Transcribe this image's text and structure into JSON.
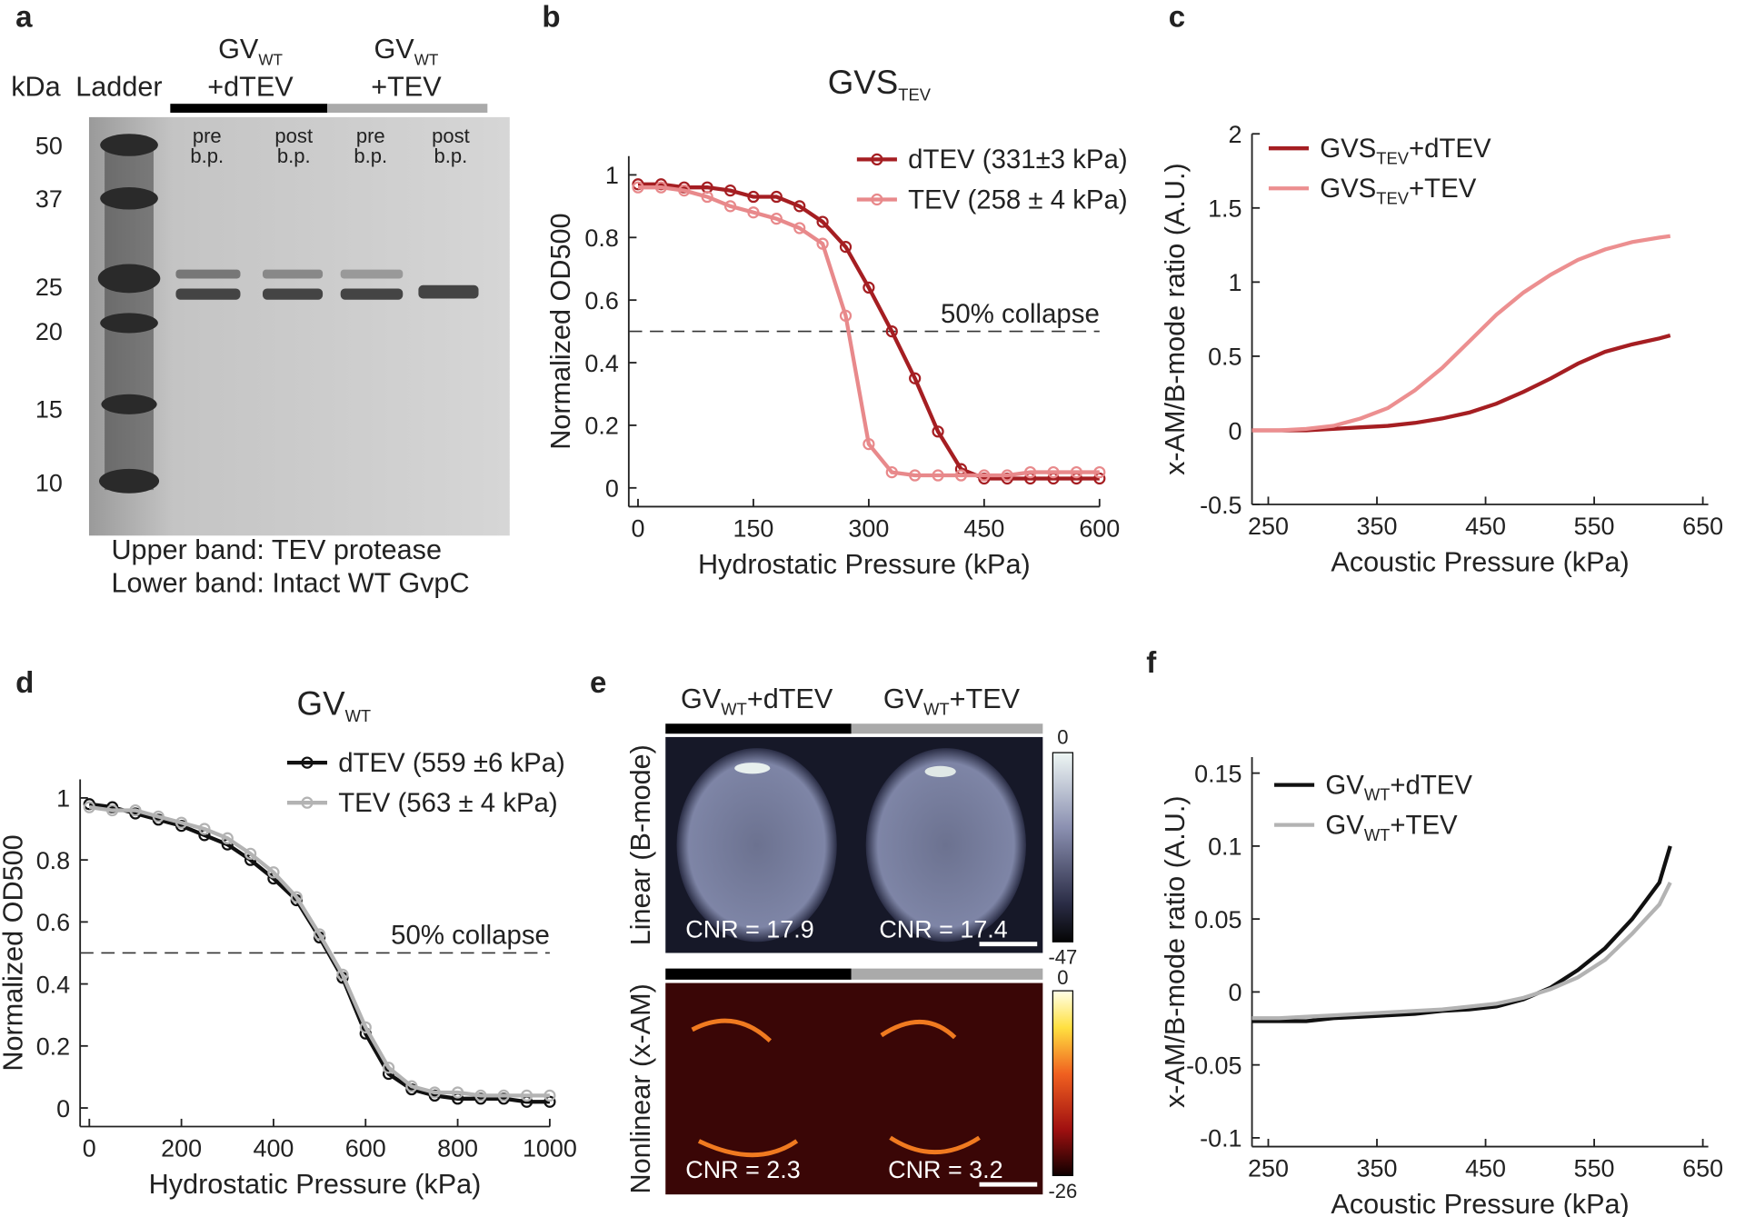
{
  "chart_data": [
    {
      "type": "line",
      "panel": "b",
      "title": "GVS",
      "title_sub": "TEV",
      "xlabel": "Hydrostatic Pressure (kPa)",
      "ylabel": "Normalized OD500",
      "xlim": [
        -12,
        600
      ],
      "xticks": [
        0,
        150,
        300,
        450,
        600
      ],
      "ylim": [
        -0.06,
        1.06
      ],
      "yticks": [
        0,
        0.2,
        0.4,
        0.6,
        0.8,
        1
      ],
      "grid": false,
      "legend": "upper right",
      "markers": true,
      "hline": 0.5,
      "annotation": "50% collapse",
      "x": [
        0,
        30,
        60,
        90,
        120,
        150,
        180,
        210,
        240,
        270,
        300,
        330,
        360,
        390,
        420,
        450,
        480,
        510,
        540,
        570,
        600
      ],
      "series": [
        {
          "name": "dTEV (331±3 kPa)",
          "color": "#a51e22",
          "values": [
            0.97,
            0.97,
            0.96,
            0.96,
            0.95,
            0.93,
            0.93,
            0.9,
            0.85,
            0.77,
            0.64,
            0.5,
            0.35,
            0.18,
            0.06,
            0.03,
            0.03,
            0.03,
            0.03,
            0.03,
            0.03
          ]
        },
        {
          "name": "TEV (258 ± 4 kPa)",
          "color": "#e8898b",
          "values": [
            0.96,
            0.96,
            0.95,
            0.93,
            0.9,
            0.88,
            0.86,
            0.83,
            0.78,
            0.55,
            0.14,
            0.05,
            0.04,
            0.04,
            0.04,
            0.04,
            0.04,
            0.05,
            0.05,
            0.05,
            0.05
          ]
        }
      ]
    },
    {
      "type": "line",
      "panel": "c",
      "xlabel": "Acoustic Pressure (kPa)",
      "ylabel": "x-AM/B-mode ratio (A.U.)",
      "xlim": [
        235,
        655
      ],
      "xticks": [
        250,
        350,
        450,
        550,
        650
      ],
      "ylim": [
        -0.5,
        2
      ],
      "yticks": [
        -0.5,
        0,
        0.5,
        1,
        1.5,
        2
      ],
      "grid": false,
      "legend": "upper left",
      "markers": false,
      "x": [
        235,
        260,
        285,
        310,
        335,
        360,
        385,
        410,
        435,
        460,
        485,
        510,
        535,
        560,
        585,
        610,
        620
      ],
      "series": [
        {
          "name": "GVS",
          "name_sub": "TEV",
          "name_suffix": "+dTEV",
          "color": "#a51e22",
          "values": [
            0,
            0,
            0,
            0.01,
            0.02,
            0.03,
            0.05,
            0.08,
            0.12,
            0.18,
            0.26,
            0.35,
            0.45,
            0.53,
            0.58,
            0.62,
            0.64
          ]
        },
        {
          "name": "GVS",
          "name_sub": "TEV",
          "name_suffix": "+TEV",
          "color": "#ec8f90",
          "values": [
            0,
            0,
            0.01,
            0.03,
            0.08,
            0.15,
            0.27,
            0.42,
            0.6,
            0.78,
            0.93,
            1.05,
            1.15,
            1.22,
            1.27,
            1.3,
            1.31
          ]
        }
      ]
    },
    {
      "type": "line",
      "panel": "d",
      "title": "GV",
      "title_sub": "WT",
      "xlabel": "Hydrostatic Pressure (kPa)",
      "ylabel": "Normalized OD500",
      "xlim": [
        -20,
        1000
      ],
      "xticks": [
        0,
        200,
        400,
        600,
        800,
        1000
      ],
      "ylim": [
        -0.06,
        1.06
      ],
      "yticks": [
        0,
        0.2,
        0.4,
        0.6,
        0.8,
        1
      ],
      "grid": false,
      "legend": "upper right",
      "markers": true,
      "hline": 0.5,
      "annotation": "50% collapse",
      "x": [
        0,
        50,
        100,
        150,
        200,
        250,
        300,
        350,
        400,
        450,
        500,
        550,
        600,
        650,
        700,
        750,
        800,
        850,
        900,
        950,
        1000
      ],
      "series": [
        {
          "name": "dTEV (559 ±6 kPa)",
          "color": "#111111",
          "values": [
            0.98,
            0.97,
            0.95,
            0.93,
            0.91,
            0.88,
            0.85,
            0.8,
            0.74,
            0.67,
            0.55,
            0.42,
            0.24,
            0.11,
            0.06,
            0.04,
            0.03,
            0.03,
            0.03,
            0.02,
            0.02
          ]
        },
        {
          "name": "TEV (563 ± 4 kPa)",
          "color": "#b3b3b3",
          "values": [
            0.97,
            0.96,
            0.96,
            0.94,
            0.92,
            0.9,
            0.87,
            0.82,
            0.76,
            0.68,
            0.56,
            0.43,
            0.26,
            0.13,
            0.07,
            0.05,
            0.05,
            0.04,
            0.04,
            0.04,
            0.04
          ]
        }
      ]
    },
    {
      "type": "line",
      "panel": "f",
      "xlabel": "Acoustic Pressure (kPa)",
      "ylabel": "x-AM/B-mode ratio (A.U.)",
      "xlim": [
        235,
        655
      ],
      "xticks": [
        250,
        350,
        450,
        550,
        650
      ],
      "ylim": [
        -0.106,
        0.161
      ],
      "yticks": [
        -0.1,
        -0.05,
        0,
        0.05,
        0.1,
        0.15
      ],
      "grid": false,
      "legend": "upper left",
      "markers": false,
      "x": [
        235,
        260,
        285,
        310,
        335,
        360,
        385,
        410,
        435,
        460,
        485,
        510,
        535,
        560,
        585,
        610,
        620
      ],
      "series": [
        {
          "name": "GV",
          "name_sub": "WT",
          "name_suffix": "+dTEV",
          "color": "#111111",
          "values": [
            -0.02,
            -0.02,
            -0.02,
            -0.018,
            -0.017,
            -0.016,
            -0.015,
            -0.013,
            -0.012,
            -0.01,
            -0.005,
            0.003,
            0.015,
            0.03,
            0.05,
            0.075,
            0.1
          ]
        },
        {
          "name": "GV",
          "name_sub": "WT",
          "name_suffix": "+TEV",
          "color": "#b3b3b3",
          "values": [
            -0.018,
            -0.018,
            -0.017,
            -0.016,
            -0.015,
            -0.014,
            -0.013,
            -0.012,
            -0.01,
            -0.008,
            -0.004,
            0.002,
            0.01,
            0.022,
            0.04,
            0.06,
            0.075
          ]
        }
      ]
    }
  ],
  "gel": {
    "panel": "a",
    "unit": "kDa",
    "ladder_label": "Ladder",
    "groups": [
      {
        "name": "GV",
        "sub": "WT",
        "suffix": "+dTEV"
      },
      {
        "name": "GV",
        "sub": "WT",
        "suffix": "+TEV"
      }
    ],
    "lanes": [
      [
        "pre",
        "b.p."
      ],
      [
        "post",
        "b.p."
      ],
      [
        "pre",
        "b.p."
      ],
      [
        "post",
        "b.p."
      ]
    ],
    "markers": [
      50,
      37,
      25,
      20,
      15,
      10
    ],
    "notes": [
      "Upper band: TEV protease",
      "Lower band: Intact WT GvpC"
    ]
  },
  "ultrasound": {
    "panel": "e",
    "columns": [
      {
        "name": "GV",
        "sub": "WT",
        "suffix": "+dTEV"
      },
      {
        "name": "GV",
        "sub": "WT",
        "suffix": "+TEV"
      }
    ],
    "rows": [
      {
        "label": "Linear (B-mode)",
        "cnr": [
          "CNR = 17.9",
          "CNR = 17.4"
        ],
        "colorbar": [
          0,
          -47
        ]
      },
      {
        "label": "Nonlinear (x-AM)",
        "cnr": [
          "CNR = 2.3",
          "CNR = 3.2"
        ],
        "colorbar": [
          0,
          -26
        ]
      }
    ]
  }
}
